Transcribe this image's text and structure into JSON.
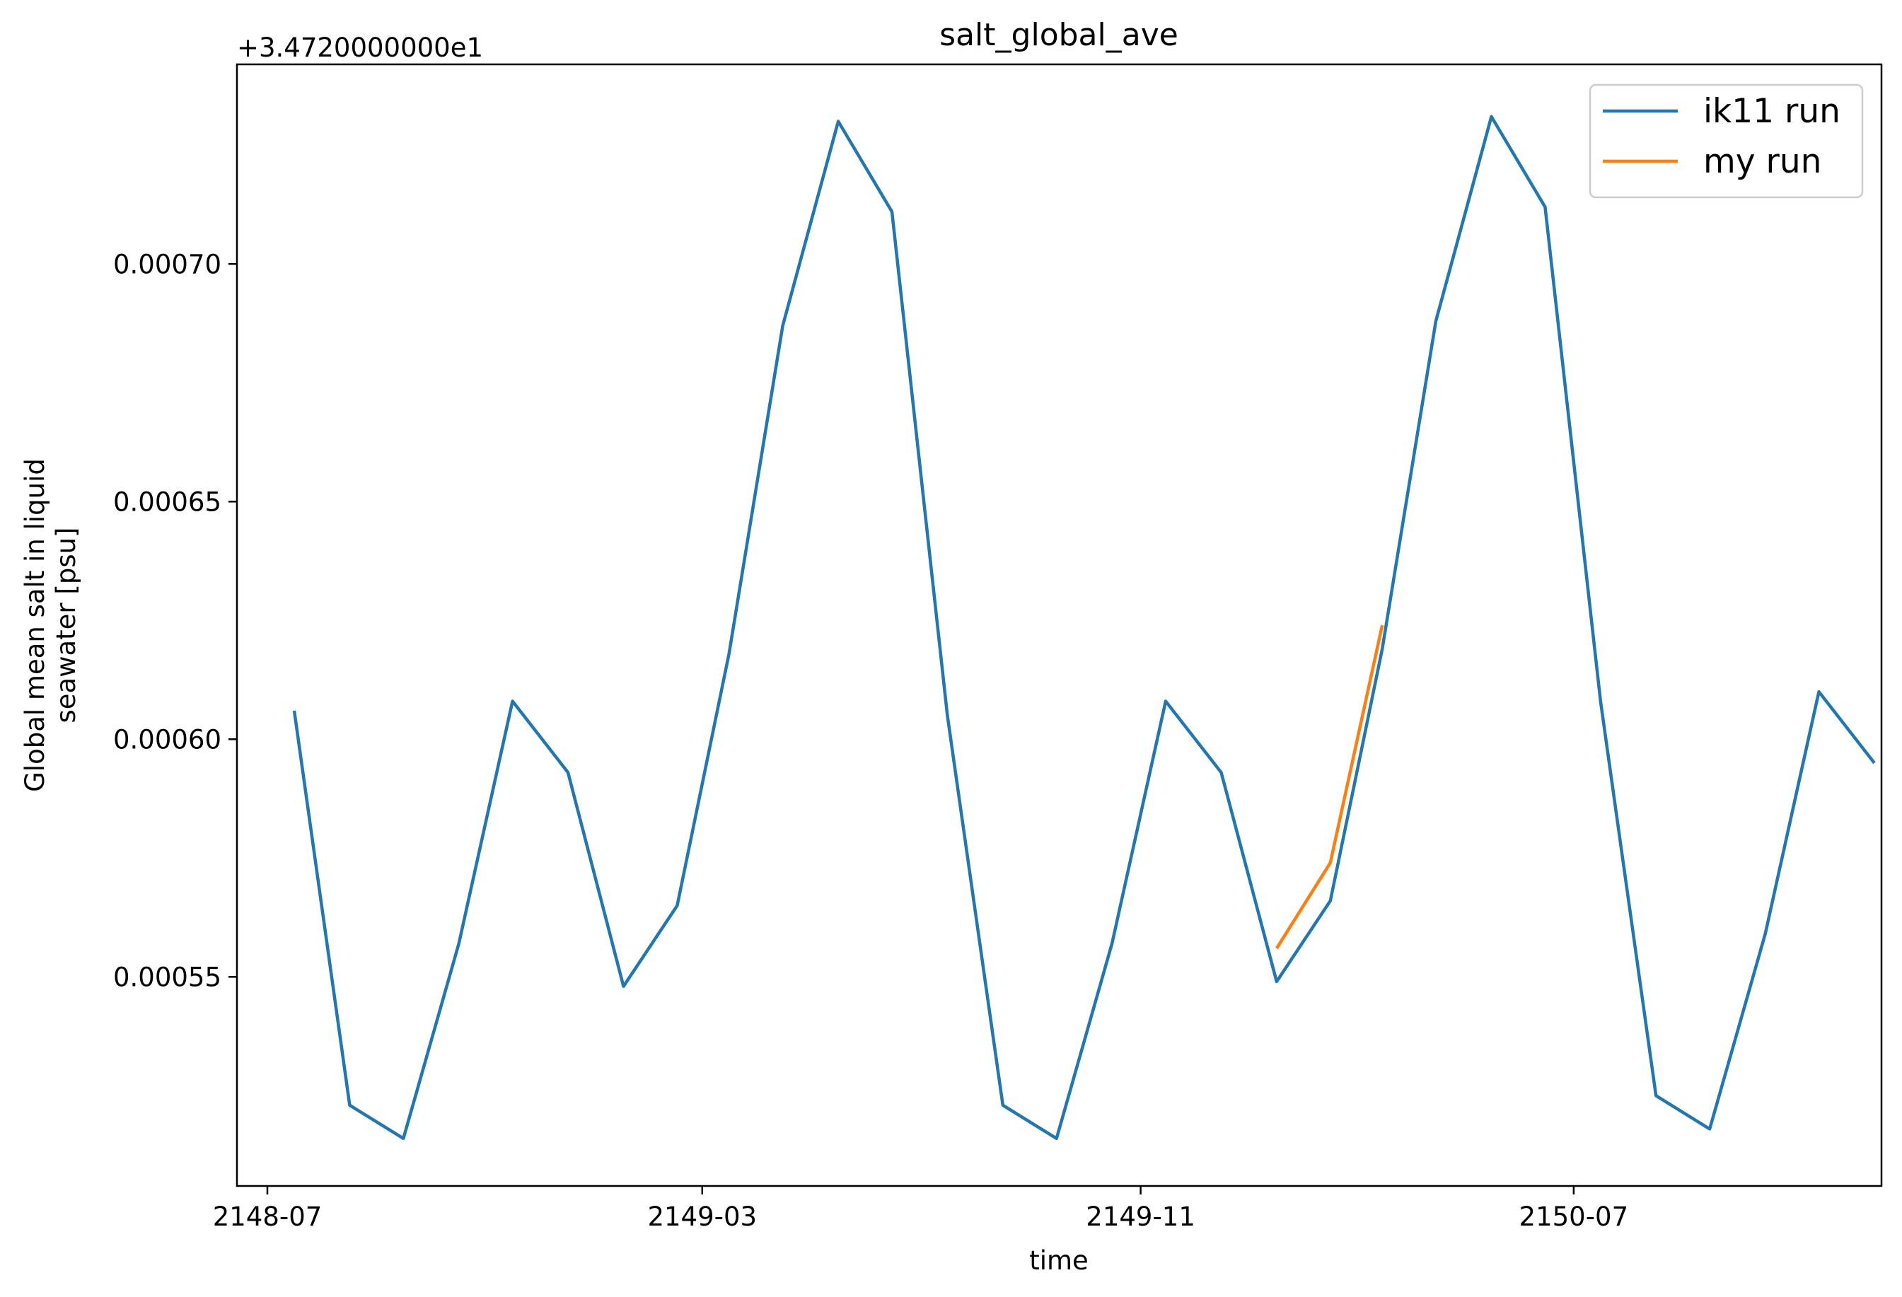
{
  "chart_data": {
    "type": "line",
    "title": "salt_global_ave",
    "xlabel": "time",
    "ylabel": "Global mean salt in liquid\nseawater [psu]",
    "ylabel_lines": [
      "Global mean salt in liquid",
      "seawater [psu]"
    ],
    "y_offset_text": "+3.4720000000e1",
    "x_is_date": true,
    "xlim": [
      "2148-06-14",
      "2150-12-20"
    ],
    "ylim": [
      0.000506,
      0.000742
    ],
    "x_ticks": [
      "2148-07",
      "2149-03",
      "2149-11",
      "2150-07"
    ],
    "x_tick_dates": [
      "2148-07-01",
      "2149-03-01",
      "2149-11-01",
      "2150-07-01"
    ],
    "y_ticks": [
      "0.00055",
      "0.00060",
      "0.00065",
      "0.00070"
    ],
    "y_tick_values": [
      0.00055,
      0.0006,
      0.00065,
      0.0007
    ],
    "grid": false,
    "legend_position": "top-right",
    "series": [
      {
        "name": "ik11 run",
        "color": "#1f77b4",
        "x": [
          "2148-07-16",
          "2148-08-16",
          "2148-09-15",
          "2148-10-16",
          "2148-11-15",
          "2148-12-16",
          "2149-01-16",
          "2149-02-15",
          "2149-03-16",
          "2149-04-15",
          "2149-05-16",
          "2149-06-15",
          "2149-07-16",
          "2149-08-16",
          "2149-09-15",
          "2149-10-16",
          "2149-11-15",
          "2149-12-16",
          "2150-01-16",
          "2150-02-15",
          "2150-03-16",
          "2150-04-15",
          "2150-05-16",
          "2150-06-15",
          "2150-07-16",
          "2150-08-16",
          "2150-09-15",
          "2150-10-16",
          "2150-11-15",
          "2150-12-16"
        ],
        "y": [
          0.000606,
          0.000523,
          0.000516,
          0.000557,
          0.000608,
          0.000593,
          0.000548,
          0.000565,
          0.000618,
          0.000687,
          0.00073,
          0.000711,
          0.000605,
          0.000523,
          0.000516,
          0.000557,
          0.000608,
          0.000593,
          0.000549,
          0.000566,
          0.000619,
          0.000688,
          0.000731,
          0.000712,
          0.000608,
          0.000525,
          0.000518,
          0.000559,
          0.00061,
          0.000595
        ]
      },
      {
        "name": "my run",
        "color": "#ff7f0e",
        "x": [
          "2150-01-16",
          "2150-02-15",
          "2150-03-16"
        ],
        "y": [
          0.000556,
          0.000574,
          0.000624
        ]
      }
    ]
  }
}
